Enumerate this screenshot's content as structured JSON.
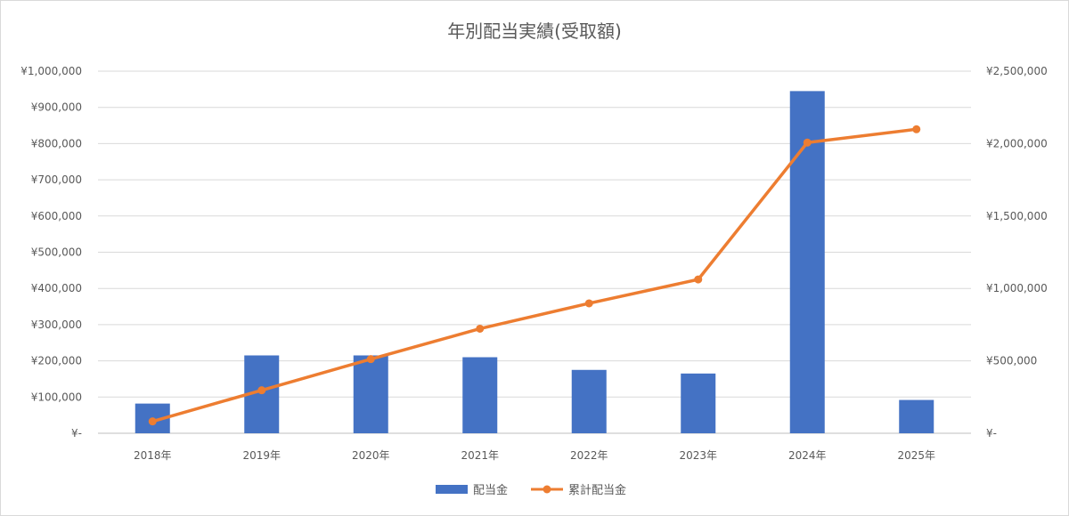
{
  "chart_data": {
    "type": "bar",
    "title": "年別配当実績(受取額)",
    "categories": [
      "2018年",
      "2019年",
      "2020年",
      "2021年",
      "2022年",
      "2023年",
      "2024年",
      "2025年"
    ],
    "series": [
      {
        "name": "配当金",
        "type": "bar",
        "axis": "left",
        "color": "#4472c4",
        "values": [
          82000,
          215000,
          215000,
          210000,
          175000,
          165000,
          945000,
          92000
        ]
      },
      {
        "name": "累計配当金",
        "type": "line",
        "axis": "right",
        "color": "#ed7d31",
        "values": [
          82000,
          297000,
          512000,
          722000,
          897000,
          1062000,
          2007000,
          2099000
        ]
      }
    ],
    "y_left": {
      "ylim": [
        0,
        1000000
      ],
      "tick_labels": [
        "¥-",
        "¥100,000",
        "¥200,000",
        "¥300,000",
        "¥400,000",
        "¥500,000",
        "¥600,000",
        "¥700,000",
        "¥800,000",
        "¥900,000",
        "¥1,000,000"
      ]
    },
    "y_right": {
      "ylim": [
        0,
        2500000
      ],
      "tick_labels": [
        "¥-",
        "¥500,000",
        "¥1,000,000",
        "¥1,500,000",
        "¥2,000,000",
        "¥2,500,000"
      ]
    },
    "grid": true,
    "legend_position": "bottom"
  }
}
